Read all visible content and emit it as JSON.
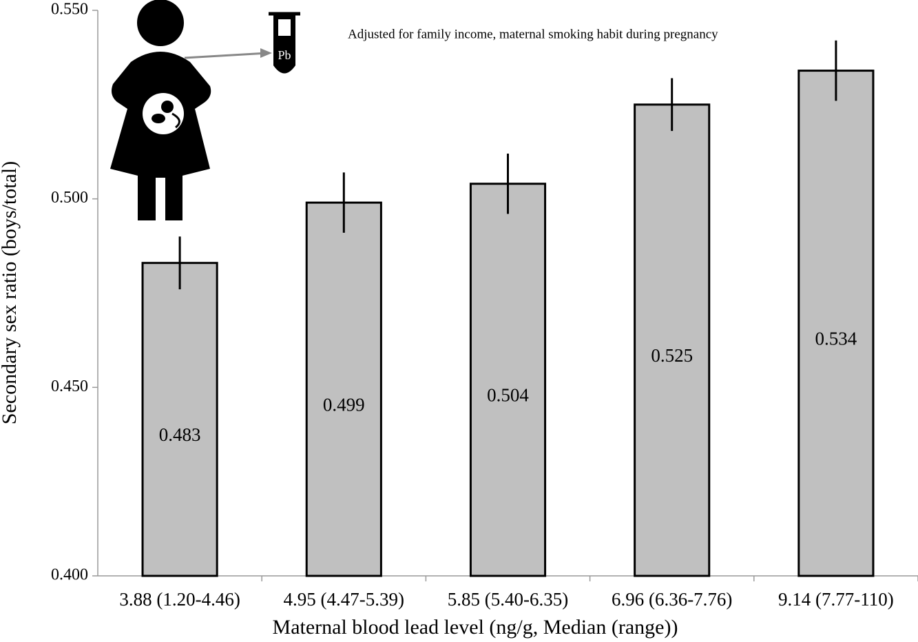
{
  "chart_data": {
    "type": "bar",
    "y_label": "Secondary sex ratio (boys/total)",
    "x_label": "Maternal blood lead level (ng/g, Median (range))",
    "annotation": "Adjusted for family income, maternal smoking habit during pregnancy",
    "icon_label": "Pb",
    "categories": [
      "3.88 (1.20-4.46)",
      "4.95 (4.47-5.39)",
      "5.85 (5.40-6.35)",
      "6.96 (6.36-7.76)",
      "9.14 (7.77-110)"
    ],
    "values": [
      0.483,
      0.499,
      0.504,
      0.525,
      0.534
    ],
    "errors": [
      0.007,
      0.008,
      0.008,
      0.007,
      0.008
    ],
    "color": "#c0c0c0",
    "ylim": [
      0.4,
      0.55
    ],
    "yticks": [
      {
        "value": 0.4,
        "label": "0.400"
      },
      {
        "value": 0.45,
        "label": "0.450"
      },
      {
        "value": 0.5,
        "label": "0.500"
      },
      {
        "value": 0.55,
        "label": "0.550"
      }
    ],
    "grid": false
  }
}
